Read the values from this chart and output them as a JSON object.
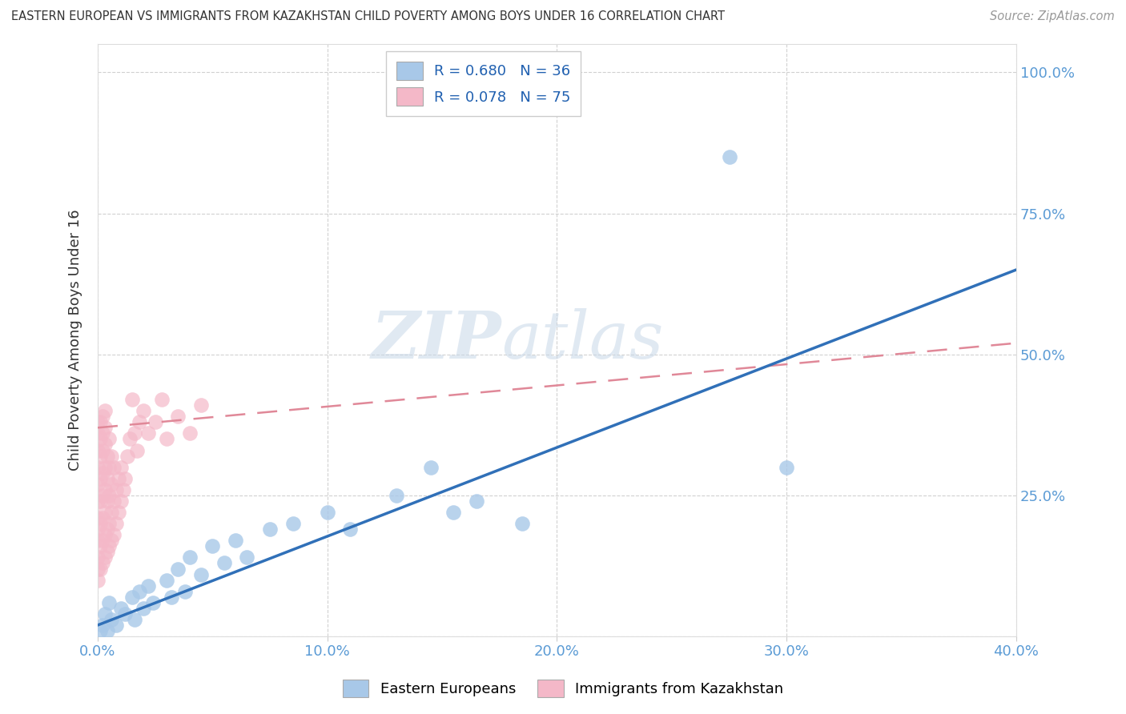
{
  "title": "EASTERN EUROPEAN VS IMMIGRANTS FROM KAZAKHSTAN CHILD POVERTY AMONG BOYS UNDER 16 CORRELATION CHART",
  "source": "Source: ZipAtlas.com",
  "ylabel": "Child Poverty Among Boys Under 16",
  "xlim": [
    0.0,
    0.4
  ],
  "ylim": [
    0.0,
    1.05
  ],
  "x_ticks": [
    0.0,
    0.1,
    0.2,
    0.3,
    0.4
  ],
  "x_tick_labels": [
    "0.0%",
    "10.0%",
    "20.0%",
    "30.0%",
    "40.0%"
  ],
  "y_ticks": [
    0.0,
    0.25,
    0.5,
    0.75,
    1.0
  ],
  "y_tick_labels_right": [
    "",
    "25.0%",
    "50.0%",
    "75.0%",
    "100.0%"
  ],
  "grid_color": "#cccccc",
  "background_color": "#ffffff",
  "color_blue": "#a8c8e8",
  "color_pink": "#f4b8c8",
  "color_blue_line": "#3070b8",
  "color_pink_line": "#e08898",
  "legend_label1": "Eastern Europeans",
  "legend_label2": "Immigrants from Kazakhstan",
  "blue_line_x0": 0.0,
  "blue_line_y0": 0.02,
  "blue_line_x1": 0.4,
  "blue_line_y1": 0.65,
  "pink_line_x0": 0.0,
  "pink_line_y0": 0.37,
  "pink_line_x1": 0.4,
  "pink_line_y1": 0.52,
  "blue_dots": [
    [
      0.001,
      0.01
    ],
    [
      0.002,
      0.02
    ],
    [
      0.003,
      0.04
    ],
    [
      0.004,
      0.01
    ],
    [
      0.005,
      0.06
    ],
    [
      0.006,
      0.03
    ],
    [
      0.008,
      0.02
    ],
    [
      0.01,
      0.05
    ],
    [
      0.012,
      0.04
    ],
    [
      0.015,
      0.07
    ],
    [
      0.016,
      0.03
    ],
    [
      0.018,
      0.08
    ],
    [
      0.02,
      0.05
    ],
    [
      0.022,
      0.09
    ],
    [
      0.024,
      0.06
    ],
    [
      0.03,
      0.1
    ],
    [
      0.032,
      0.07
    ],
    [
      0.035,
      0.12
    ],
    [
      0.038,
      0.08
    ],
    [
      0.04,
      0.14
    ],
    [
      0.045,
      0.11
    ],
    [
      0.05,
      0.16
    ],
    [
      0.055,
      0.13
    ],
    [
      0.06,
      0.17
    ],
    [
      0.065,
      0.14
    ],
    [
      0.075,
      0.19
    ],
    [
      0.085,
      0.2
    ],
    [
      0.1,
      0.22
    ],
    [
      0.11,
      0.19
    ],
    [
      0.13,
      0.25
    ],
    [
      0.145,
      0.3
    ],
    [
      0.155,
      0.22
    ],
    [
      0.165,
      0.24
    ],
    [
      0.185,
      0.2
    ],
    [
      0.275,
      0.85
    ],
    [
      0.3,
      0.3
    ]
  ],
  "pink_dots": [
    [
      0.0,
      0.1
    ],
    [
      0.0,
      0.12
    ],
    [
      0.0,
      0.14
    ],
    [
      0.0,
      0.17
    ],
    [
      0.0,
      0.19
    ],
    [
      0.0,
      0.21
    ],
    [
      0.0,
      0.24
    ],
    [
      0.0,
      0.27
    ],
    [
      0.0,
      0.3
    ],
    [
      0.0,
      0.33
    ],
    [
      0.0,
      0.36
    ],
    [
      0.0,
      0.38
    ],
    [
      0.001,
      0.12
    ],
    [
      0.001,
      0.16
    ],
    [
      0.001,
      0.2
    ],
    [
      0.001,
      0.24
    ],
    [
      0.001,
      0.28
    ],
    [
      0.001,
      0.32
    ],
    [
      0.001,
      0.35
    ],
    [
      0.001,
      0.38
    ],
    [
      0.002,
      0.13
    ],
    [
      0.002,
      0.17
    ],
    [
      0.002,
      0.21
    ],
    [
      0.002,
      0.25
    ],
    [
      0.002,
      0.29
    ],
    [
      0.002,
      0.33
    ],
    [
      0.002,
      0.36
    ],
    [
      0.002,
      0.39
    ],
    [
      0.003,
      0.14
    ],
    [
      0.003,
      0.18
    ],
    [
      0.003,
      0.22
    ],
    [
      0.003,
      0.26
    ],
    [
      0.003,
      0.3
    ],
    [
      0.003,
      0.34
    ],
    [
      0.003,
      0.37
    ],
    [
      0.003,
      0.4
    ],
    [
      0.004,
      0.15
    ],
    [
      0.004,
      0.19
    ],
    [
      0.004,
      0.24
    ],
    [
      0.004,
      0.28
    ],
    [
      0.004,
      0.32
    ],
    [
      0.005,
      0.16
    ],
    [
      0.005,
      0.2
    ],
    [
      0.005,
      0.25
    ],
    [
      0.005,
      0.3
    ],
    [
      0.005,
      0.35
    ],
    [
      0.006,
      0.17
    ],
    [
      0.006,
      0.22
    ],
    [
      0.006,
      0.27
    ],
    [
      0.006,
      0.32
    ],
    [
      0.007,
      0.18
    ],
    [
      0.007,
      0.24
    ],
    [
      0.007,
      0.3
    ],
    [
      0.008,
      0.2
    ],
    [
      0.008,
      0.26
    ],
    [
      0.009,
      0.22
    ],
    [
      0.009,
      0.28
    ],
    [
      0.01,
      0.24
    ],
    [
      0.01,
      0.3
    ],
    [
      0.011,
      0.26
    ],
    [
      0.012,
      0.28
    ],
    [
      0.013,
      0.32
    ],
    [
      0.014,
      0.35
    ],
    [
      0.015,
      0.42
    ],
    [
      0.016,
      0.36
    ],
    [
      0.017,
      0.33
    ],
    [
      0.018,
      0.38
    ],
    [
      0.02,
      0.4
    ],
    [
      0.022,
      0.36
    ],
    [
      0.025,
      0.38
    ],
    [
      0.028,
      0.42
    ],
    [
      0.03,
      0.35
    ],
    [
      0.035,
      0.39
    ],
    [
      0.04,
      0.36
    ],
    [
      0.045,
      0.41
    ]
  ]
}
